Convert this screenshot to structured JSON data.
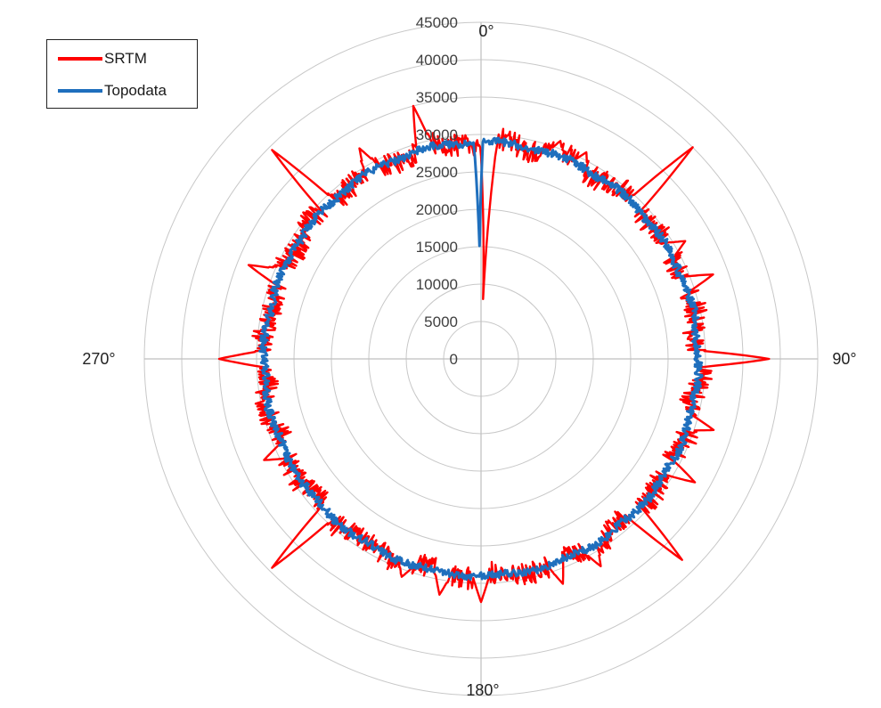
{
  "chart_data": {
    "type": "radar",
    "angle_labels": [
      "0°",
      "90°",
      "180°",
      "270°"
    ],
    "radial_ticks": [
      "0",
      "5000",
      "10000",
      "15000",
      "20000",
      "25000",
      "30000",
      "35000",
      "40000",
      "45000"
    ],
    "rmax": 45000,
    "grid": true,
    "legend_position": "top-left",
    "series": [
      {
        "name": "SRTM",
        "color": "#ff0000",
        "base": 29000,
        "ripple": 1500,
        "spikes": [
          {
            "angle": 2,
            "value": 8000
          },
          {
            "angle": 20,
            "value": 31000
          },
          {
            "angle": 27,
            "value": 31000
          },
          {
            "angle": 45,
            "value": 40000
          },
          {
            "angle": 60,
            "value": 31500
          },
          {
            "angle": 70,
            "value": 33000
          },
          {
            "angle": 90,
            "value": 38500
          },
          {
            "angle": 107,
            "value": 32500
          },
          {
            "angle": 120,
            "value": 33000
          },
          {
            "angle": 135,
            "value": 38000
          },
          {
            "angle": 150,
            "value": 32000
          },
          {
            "angle": 160,
            "value": 32000
          },
          {
            "angle": 180,
            "value": 32500
          },
          {
            "angle": 190,
            "value": 32000
          },
          {
            "angle": 200,
            "value": 31000
          },
          {
            "angle": 225,
            "value": 39500
          },
          {
            "angle": 245,
            "value": 32000
          },
          {
            "angle": 270,
            "value": 35000
          },
          {
            "angle": 292,
            "value": 33500
          },
          {
            "angle": 315,
            "value": 39500
          },
          {
            "angle": 330,
            "value": 32500
          },
          {
            "angle": 345,
            "value": 35000
          }
        ]
      },
      {
        "name": "Topodata",
        "color": "#1f6fbd",
        "base": 29000,
        "ripple": 500,
        "spikes": [
          {
            "angle": 359.3,
            "value": 14500
          }
        ]
      }
    ]
  }
}
